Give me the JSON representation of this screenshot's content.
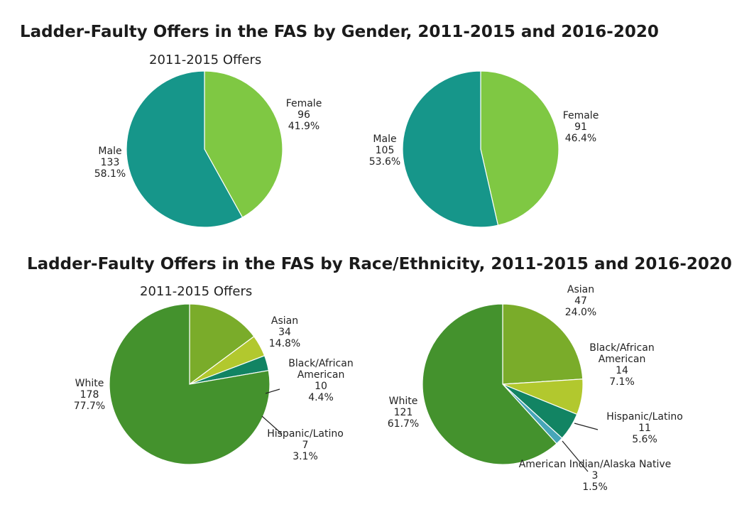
{
  "gender_section": {
    "title": "Ladder-Faulty Offers in the FAS by Gender, 2011-2015 and 2016-2020",
    "left_subtitle": "2011-2015 Offers"
  },
  "race_section": {
    "title": "Ladder-Faulty Offers in the FAS by Race/Ethnicity, 2011-2015 and 2016-2020",
    "left_subtitle": "2011-2015 Offers"
  },
  "chart_data": [
    {
      "type": "pie",
      "title": "2011-2015 Offers",
      "slices": [
        {
          "label": "Female",
          "value": 96,
          "percent": "41.9%",
          "color": "#7fc843"
        },
        {
          "label": "Male",
          "value": 133,
          "percent": "58.1%",
          "color": "#16968a"
        }
      ]
    },
    {
      "type": "pie",
      "title": "",
      "slices": [
        {
          "label": "Female",
          "value": 91,
          "percent": "46.4%",
          "color": "#7fc843"
        },
        {
          "label": "Male",
          "value": 105,
          "percent": "53.6%",
          "color": "#16968a"
        }
      ]
    },
    {
      "type": "pie",
      "title": "2011-2015 Offers",
      "slices": [
        {
          "label": "Asian",
          "value": 34,
          "percent": "14.8%",
          "color": "#7aac2a"
        },
        {
          "label": "Black/African American",
          "value": 10,
          "percent": "4.4%",
          "color": "#b2c82e"
        },
        {
          "label": "Hispanic/Latino",
          "value": 7,
          "percent": "3.1%",
          "color": "#128463"
        },
        {
          "label": "White",
          "value": 178,
          "percent": "77.7%",
          "color": "#44922d"
        }
      ]
    },
    {
      "type": "pie",
      "title": "",
      "slices": [
        {
          "label": "Asian",
          "value": 47,
          "percent": "24.0%",
          "color": "#7aac2a"
        },
        {
          "label": "Black/African American",
          "value": 14,
          "percent": "7.1%",
          "color": "#b2c82e"
        },
        {
          "label": "Hispanic/Latino",
          "value": 11,
          "percent": "5.6%",
          "color": "#128463"
        },
        {
          "label": "American Indian/Alaska Native",
          "value": 3,
          "percent": "1.5%",
          "color": "#47a6b8"
        },
        {
          "label": "White",
          "value": 121,
          "percent": "61.7%",
          "color": "#44922d"
        }
      ]
    }
  ]
}
